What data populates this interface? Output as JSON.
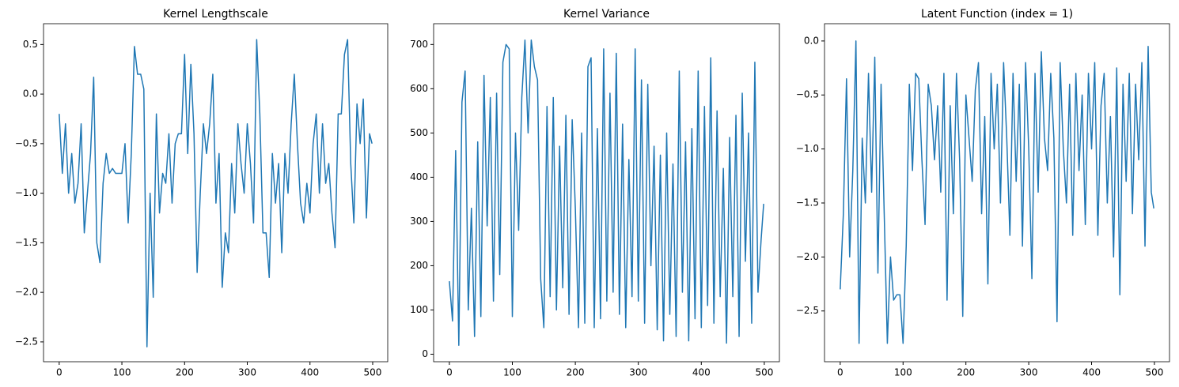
{
  "chart_data": [
    {
      "type": "line",
      "title": "Kernel Lengthscale",
      "color": "#1f77b4",
      "x": [
        0,
        5,
        10,
        15,
        20,
        25,
        30,
        35,
        40,
        45,
        50,
        55,
        60,
        65,
        70,
        75,
        80,
        85,
        90,
        95,
        100,
        105,
        110,
        115,
        120,
        125,
        130,
        135,
        140,
        145,
        150,
        155,
        160,
        165,
        170,
        175,
        180,
        185,
        190,
        195,
        200,
        205,
        210,
        215,
        220,
        225,
        230,
        235,
        240,
        245,
        250,
        255,
        260,
        265,
        270,
        275,
        280,
        285,
        290,
        295,
        300,
        305,
        310,
        315,
        320,
        325,
        330,
        335,
        340,
        345,
        350,
        355,
        360,
        365,
        370,
        375,
        380,
        385,
        390,
        395,
        400,
        405,
        410,
        415,
        420,
        425,
        430,
        435,
        440,
        445,
        450,
        455,
        460,
        465,
        470,
        475,
        480,
        485,
        490,
        495,
        499
      ],
      "values": [
        -0.2,
        -0.8,
        -0.3,
        -1.0,
        -0.6,
        -1.1,
        -0.9,
        -0.3,
        -1.4,
        -1.0,
        -0.6,
        0.17,
        -1.5,
        -1.7,
        -0.9,
        -0.6,
        -0.8,
        -0.75,
        -0.8,
        -0.8,
        -0.8,
        -0.5,
        -1.3,
        -0.6,
        0.48,
        0.2,
        0.2,
        0.05,
        -2.55,
        -1.0,
        -2.05,
        -0.2,
        -1.2,
        -0.8,
        -0.9,
        -0.4,
        -1.1,
        -0.5,
        -0.4,
        -0.4,
        0.4,
        -0.6,
        0.3,
        -0.4,
        -1.8,
        -1.0,
        -0.3,
        -0.6,
        -0.3,
        0.2,
        -1.1,
        -0.6,
        -1.95,
        -1.4,
        -1.6,
        -0.7,
        -1.2,
        -0.3,
        -0.7,
        -1.0,
        -0.3,
        -0.7,
        -1.3,
        0.55,
        -0.2,
        -1.4,
        -1.4,
        -1.85,
        -0.6,
        -1.1,
        -0.7,
        -1.6,
        -0.6,
        -1.0,
        -0.3,
        0.2,
        -0.5,
        -1.1,
        -1.3,
        -0.9,
        -1.2,
        -0.5,
        -0.2,
        -1.0,
        -0.3,
        -0.9,
        -0.7,
        -1.2,
        -1.55,
        -0.2,
        -0.2,
        0.4,
        0.55,
        -0.7,
        -1.3,
        -0.1,
        -0.5,
        -0.05,
        -1.25,
        -0.4,
        -0.5
      ],
      "xlim": [
        -25,
        524
      ],
      "xticks": [
        0,
        100,
        200,
        300,
        400,
        500
      ],
      "ylim": [
        -2.7,
        0.71
      ],
      "yticks": [
        {
          "value": -2.5,
          "label": "−2.5"
        },
        {
          "value": -2.0,
          "label": "−2.0"
        },
        {
          "value": -1.5,
          "label": "−1.5"
        },
        {
          "value": -1.0,
          "label": "−1.0"
        },
        {
          "value": -0.5,
          "label": "−0.5"
        },
        {
          "value": 0.0,
          "label": "0.0"
        },
        0.5
      ]
    },
    {
      "type": "line",
      "title": "Kernel Variance",
      "color": "#1f77b4",
      "x": [
        0,
        5,
        10,
        15,
        20,
        25,
        30,
        35,
        40,
        45,
        50,
        55,
        60,
        65,
        70,
        75,
        80,
        85,
        90,
        95,
        100,
        105,
        110,
        115,
        120,
        125,
        130,
        135,
        140,
        145,
        150,
        155,
        160,
        165,
        170,
        175,
        180,
        185,
        190,
        195,
        200,
        205,
        210,
        215,
        220,
        225,
        230,
        235,
        240,
        245,
        250,
        255,
        260,
        265,
        270,
        275,
        280,
        285,
        290,
        295,
        300,
        305,
        310,
        315,
        320,
        325,
        330,
        335,
        340,
        345,
        350,
        355,
        360,
        365,
        370,
        375,
        380,
        385,
        390,
        395,
        400,
        405,
        410,
        415,
        420,
        425,
        430,
        435,
        440,
        445,
        450,
        455,
        460,
        465,
        470,
        475,
        480,
        485,
        490,
        495,
        499
      ],
      "values": [
        165,
        75,
        460,
        20,
        570,
        640,
        100,
        330,
        40,
        480,
        85,
        630,
        290,
        580,
        120,
        590,
        180,
        660,
        700,
        690,
        85,
        500,
        280,
        580,
        710,
        500,
        710,
        650,
        620,
        170,
        60,
        560,
        130,
        580,
        100,
        470,
        150,
        540,
        90,
        530,
        330,
        60,
        500,
        70,
        650,
        670,
        60,
        510,
        80,
        690,
        120,
        590,
        140,
        680,
        90,
        520,
        60,
        440,
        130,
        690,
        120,
        620,
        70,
        610,
        200,
        470,
        55,
        450,
        30,
        500,
        90,
        430,
        40,
        640,
        140,
        480,
        30,
        510,
        80,
        640,
        60,
        560,
        110,
        670,
        70,
        550,
        130,
        420,
        25,
        490,
        130,
        540,
        40,
        590,
        210,
        500,
        70,
        660,
        140,
        260,
        340
      ],
      "xlim": [
        -25,
        524
      ],
      "xticks": [
        0,
        100,
        200,
        300,
        400,
        500
      ],
      "ylim": [
        -17,
        747
      ],
      "yticks": [
        0,
        100,
        200,
        300,
        400,
        500,
        600,
        700
      ]
    },
    {
      "type": "line",
      "title": "Latent Function (index = 1)",
      "color": "#1f77b4",
      "x": [
        0,
        5,
        10,
        15,
        20,
        25,
        30,
        35,
        40,
        45,
        50,
        55,
        60,
        65,
        70,
        75,
        80,
        85,
        90,
        95,
        100,
        105,
        110,
        115,
        120,
        125,
        130,
        135,
        140,
        145,
        150,
        155,
        160,
        165,
        170,
        175,
        180,
        185,
        190,
        195,
        200,
        205,
        210,
        215,
        220,
        225,
        230,
        235,
        240,
        245,
        250,
        255,
        260,
        265,
        270,
        275,
        280,
        285,
        290,
        295,
        300,
        305,
        310,
        315,
        320,
        325,
        330,
        335,
        340,
        345,
        350,
        355,
        360,
        365,
        370,
        375,
        380,
        385,
        390,
        395,
        400,
        405,
        410,
        415,
        420,
        425,
        430,
        435,
        440,
        445,
        450,
        455,
        460,
        465,
        470,
        475,
        480,
        485,
        490,
        495,
        499
      ],
      "values": [
        -2.3,
        -1.6,
        -0.35,
        -2.0,
        -1.2,
        0.0,
        -2.8,
        -0.9,
        -1.5,
        -0.3,
        -1.4,
        -0.15,
        -2.15,
        -0.4,
        -1.6,
        -2.8,
        -2.0,
        -2.4,
        -2.35,
        -2.35,
        -2.8,
        -1.9,
        -0.4,
        -1.2,
        -0.3,
        -0.35,
        -1.1,
        -1.7,
        -0.4,
        -0.6,
        -1.1,
        -0.6,
        -1.4,
        -0.3,
        -2.4,
        -0.6,
        -1.6,
        -0.3,
        -1.1,
        -2.55,
        -0.5,
        -0.9,
        -1.3,
        -0.45,
        -0.2,
        -1.6,
        -0.7,
        -2.25,
        -0.3,
        -1.0,
        -0.4,
        -1.5,
        -0.2,
        -0.9,
        -1.8,
        -0.3,
        -1.3,
        -0.4,
        -1.9,
        -0.2,
        -1.0,
        -2.2,
        -0.3,
        -1.4,
        -0.1,
        -0.9,
        -1.2,
        -0.3,
        -0.9,
        -2.6,
        -0.2,
        -1.0,
        -1.5,
        -0.4,
        -1.8,
        -0.3,
        -1.2,
        -0.5,
        -1.7,
        -0.3,
        -1.0,
        -0.2,
        -1.8,
        -0.6,
        -0.3,
        -1.5,
        -0.7,
        -2.0,
        -0.25,
        -2.35,
        -0.4,
        -1.3,
        -0.3,
        -1.6,
        -0.4,
        -1.1,
        -0.2,
        -1.9,
        -0.05,
        -1.4,
        -1.55
      ],
      "xlim": [
        -25,
        524
      ],
      "xticks": [
        0,
        100,
        200,
        300,
        400,
        500
      ],
      "ylim": [
        -2.97,
        0.16
      ],
      "yticks": [
        {
          "value": -2.5,
          "label": "−2.5"
        },
        {
          "value": -2.0,
          "label": "−2.0"
        },
        {
          "value": -1.5,
          "label": "−1.5"
        },
        {
          "value": -1.0,
          "label": "−1.0"
        },
        {
          "value": -0.5,
          "label": "−0.5"
        },
        {
          "value": 0.0,
          "label": "0.0"
        }
      ]
    }
  ]
}
